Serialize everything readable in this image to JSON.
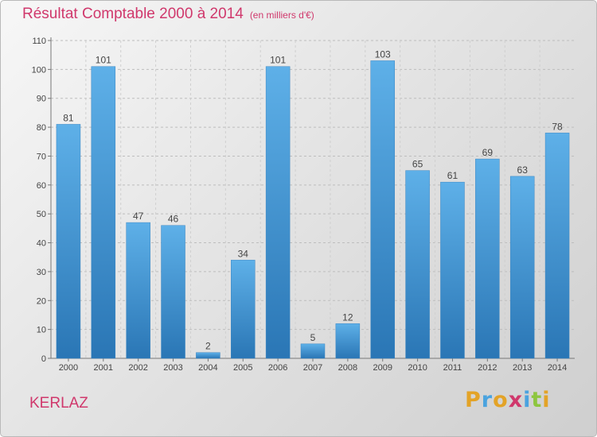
{
  "title": "Résultat Comptable 2000 à 2014",
  "subtitle": "(en milliers d'€)",
  "commune": "KERLAZ",
  "brand": {
    "letters": [
      "P",
      "r",
      "o",
      "x",
      "i",
      "t",
      "i"
    ],
    "colors": [
      "#e3a327",
      "#4aa3df",
      "#e3a327",
      "#d0386c",
      "#4aa3df",
      "#8dc63f",
      "#e3a327"
    ]
  },
  "colors": {
    "title": "#d0386c",
    "bar_top": "#5eb0e8",
    "bar_bottom": "#2a76b5"
  },
  "chart_data": {
    "type": "bar",
    "categories": [
      "2000",
      "2001",
      "2002",
      "2003",
      "2004",
      "2005",
      "2006",
      "2007",
      "2008",
      "2009",
      "2010",
      "2011",
      "2012",
      "2013",
      "2014"
    ],
    "values": [
      81,
      101,
      47,
      46,
      2,
      34,
      101,
      5,
      12,
      103,
      65,
      61,
      69,
      63,
      78
    ],
    "title": "Résultat Comptable 2000 à 2014",
    "ylabel": "",
    "xlabel": "",
    "ylim": [
      0,
      110
    ],
    "yticks": [
      0,
      10,
      20,
      30,
      40,
      50,
      60,
      70,
      80,
      90,
      100,
      110
    ]
  }
}
